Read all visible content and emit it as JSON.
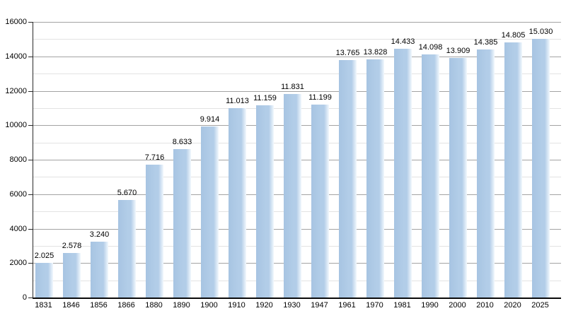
{
  "chart_data": {
    "type": "bar",
    "title": "",
    "xlabel": "",
    "ylabel": "",
    "categories": [
      "1831",
      "1846",
      "1856",
      "1866",
      "1880",
      "1890",
      "1900",
      "1910",
      "1920",
      "1930",
      "1947",
      "1961",
      "1970",
      "1981",
      "1990",
      "2000",
      "2010",
      "2020",
      "2025"
    ],
    "values": [
      2025,
      2578,
      3240,
      5670,
      7716,
      8633,
      9914,
      11013,
      11159,
      11831,
      11199,
      13765,
      13828,
      14433,
      14098,
      13909,
      14385,
      14805,
      15030
    ],
    "value_labels": [
      "2.025",
      "2.578",
      "3.240",
      "5.670",
      "7.716",
      "8.633",
      "9.914",
      "11.013",
      "11.159",
      "11.831",
      "11.199",
      "13.765",
      "13.828",
      "14.433",
      "14.098",
      "13.909",
      "14.385",
      "14.805",
      "15.030"
    ],
    "ylim": [
      0,
      16000
    ],
    "y_major_step": 2000,
    "y_minor_step": 1000,
    "y_tick_labels": [
      "0",
      "2000",
      "4000",
      "6000",
      "8000",
      "10000",
      "12000",
      "14000",
      "16000"
    ],
    "grid": "on",
    "legend": "none"
  },
  "colors": {
    "background": "#ffffff",
    "bar_left": "#a7c4e2",
    "bar_main": "#b2cde8",
    "bar_fade": "#f2f8fd",
    "major_gridline": "#a3a3a3",
    "minor_gridline": "#e3e3e3",
    "axis": "#1a1a1a",
    "text": "#000000"
  }
}
